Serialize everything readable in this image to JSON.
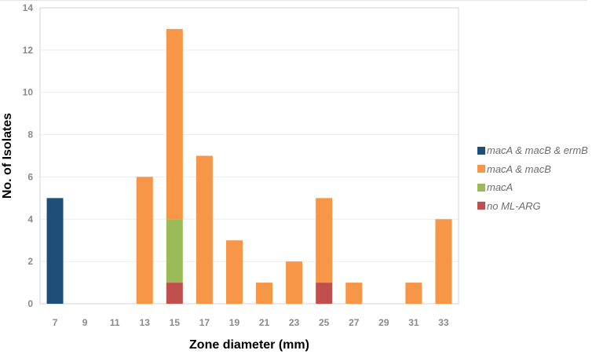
{
  "chart_data": {
    "type": "bar",
    "stacked": true,
    "title": "",
    "xlabel": "Zone diameter (mm)",
    "ylabel": "No. of Isolates",
    "categories": [
      "7",
      "9",
      "11",
      "13",
      "15",
      "17",
      "19",
      "21",
      "23",
      "25",
      "27",
      "29",
      "31",
      "33"
    ],
    "ylim": [
      0,
      14
    ],
    "yticks": [
      0,
      2,
      4,
      6,
      8,
      10,
      12,
      14
    ],
    "grid": true,
    "legend_position": "right",
    "series": [
      {
        "name": "no ML-ARG",
        "color": "#c0504d",
        "values": [
          0,
          0,
          0,
          0,
          1,
          0,
          0,
          0,
          0,
          1,
          0,
          0,
          0,
          0
        ]
      },
      {
        "name": "macA",
        "color": "#9bbb59",
        "values": [
          0,
          0,
          0,
          0,
          3,
          0,
          0,
          0,
          0,
          0,
          0,
          0,
          0,
          0
        ]
      },
      {
        "name": "macA & macB",
        "color": "#f79646",
        "values": [
          0,
          0,
          0,
          6,
          9,
          7,
          3,
          1,
          2,
          4,
          1,
          0,
          1,
          4
        ]
      },
      {
        "name": "macA & macB & ermB",
        "color": "#1f4e79",
        "values": [
          5,
          0,
          0,
          0,
          0,
          0,
          0,
          0,
          0,
          0,
          0,
          0,
          0,
          0
        ]
      }
    ],
    "legend_order": [
      "macA & macB & ermB",
      "macA & macB",
      "macA",
      "no ML-ARG"
    ]
  }
}
